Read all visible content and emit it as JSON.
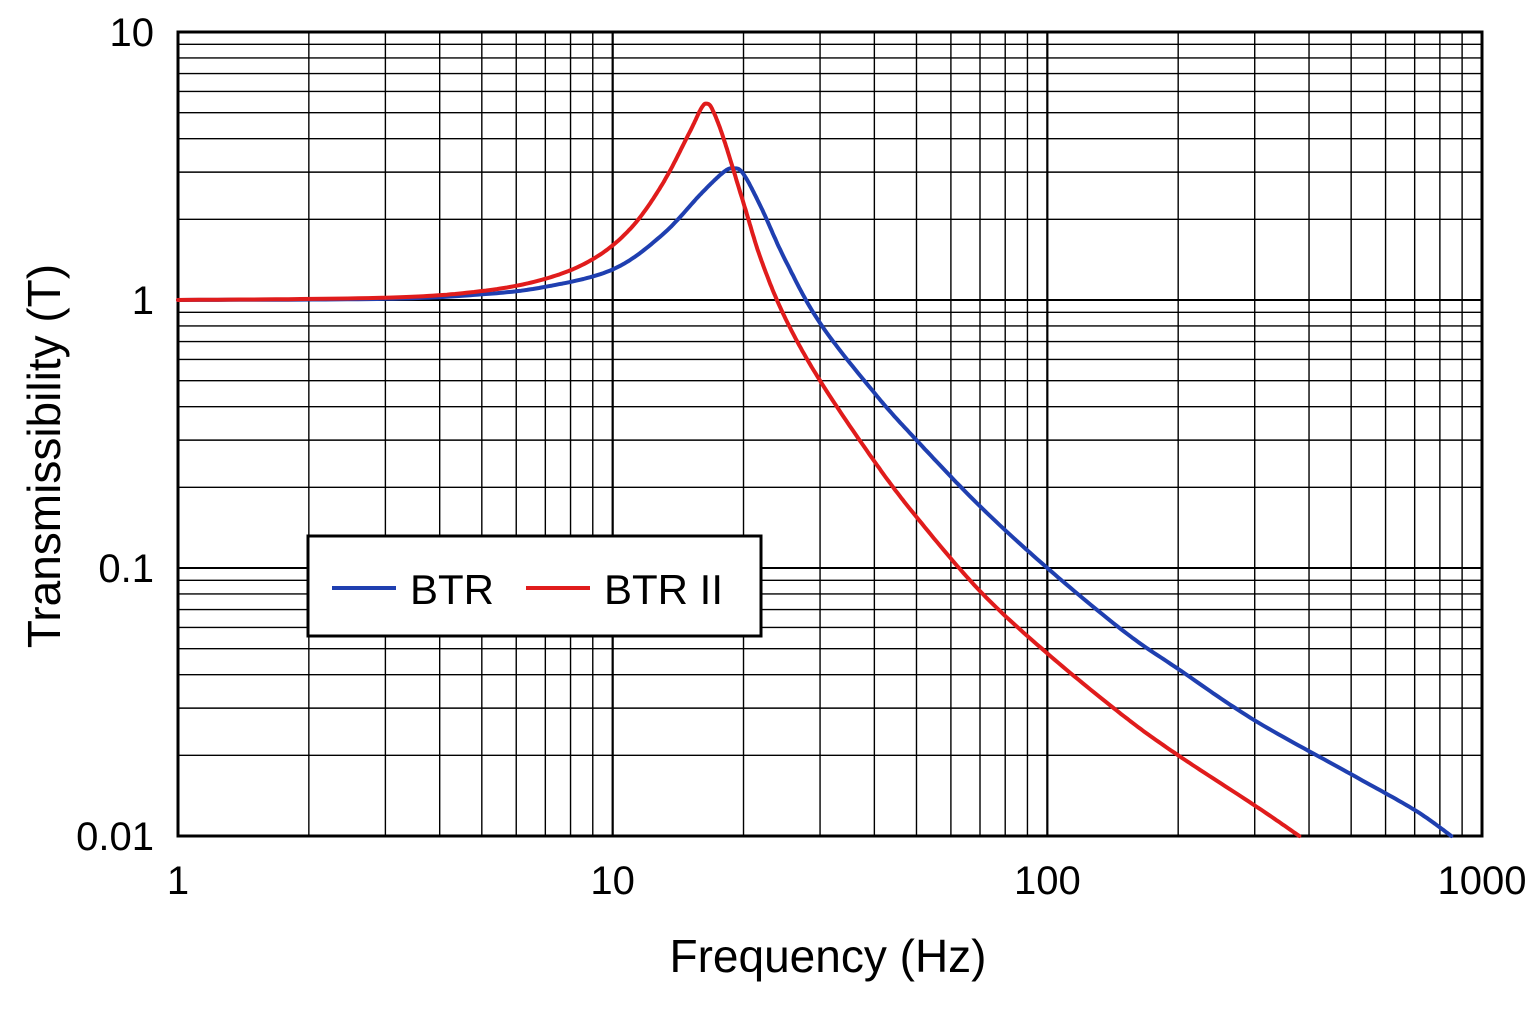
{
  "chart_data": {
    "type": "line",
    "x_scale": "log",
    "y_scale": "log",
    "xlim": [
      1,
      1000
    ],
    "ylim": [
      0.01,
      10
    ],
    "grid": true,
    "xlabel": "Frequency (Hz)",
    "ylabel": "Transmissibility (T)",
    "x_ticks": [
      {
        "value": 1,
        "label": "1"
      },
      {
        "value": 10,
        "label": "10"
      },
      {
        "value": 100,
        "label": "100"
      },
      {
        "value": 1000,
        "label": "1000"
      }
    ],
    "y_ticks": [
      {
        "value": 0.01,
        "label": "0.01"
      },
      {
        "value": 0.1,
        "label": "0.1"
      },
      {
        "value": 1,
        "label": "1"
      },
      {
        "value": 10,
        "label": "10"
      }
    ],
    "legend_position": "center-left",
    "series": [
      {
        "name": "BTR",
        "color": "#1f3fb0",
        "points": [
          [
            1,
            1.0
          ],
          [
            3,
            1.01
          ],
          [
            5,
            1.05
          ],
          [
            7,
            1.12
          ],
          [
            10,
            1.3
          ],
          [
            13,
            1.75
          ],
          [
            16,
            2.5
          ],
          [
            18,
            3.0
          ],
          [
            19,
            3.1
          ],
          [
            20,
            2.95
          ],
          [
            22,
            2.2
          ],
          [
            25,
            1.4
          ],
          [
            30,
            0.82
          ],
          [
            40,
            0.45
          ],
          [
            50,
            0.3
          ],
          [
            70,
            0.17
          ],
          [
            100,
            0.1
          ],
          [
            150,
            0.058
          ],
          [
            200,
            0.042
          ],
          [
            300,
            0.027
          ],
          [
            500,
            0.017
          ],
          [
            700,
            0.0125
          ],
          [
            850,
            0.01
          ]
        ]
      },
      {
        "name": "BTR II",
        "color": "#e01c1c",
        "points": [
          [
            1,
            1.0
          ],
          [
            3,
            1.02
          ],
          [
            5,
            1.08
          ],
          [
            7,
            1.2
          ],
          [
            9,
            1.42
          ],
          [
            11,
            1.85
          ],
          [
            13,
            2.7
          ],
          [
            15,
            4.2
          ],
          [
            16,
            5.2
          ],
          [
            16.5,
            5.4
          ],
          [
            17,
            5.1
          ],
          [
            18,
            4.0
          ],
          [
            20,
            2.3
          ],
          [
            22,
            1.4
          ],
          [
            25,
            0.85
          ],
          [
            30,
            0.5
          ],
          [
            40,
            0.25
          ],
          [
            50,
            0.155
          ],
          [
            70,
            0.082
          ],
          [
            100,
            0.048
          ],
          [
            150,
            0.028
          ],
          [
            200,
            0.02
          ],
          [
            300,
            0.013
          ],
          [
            380,
            0.01
          ]
        ]
      }
    ]
  }
}
